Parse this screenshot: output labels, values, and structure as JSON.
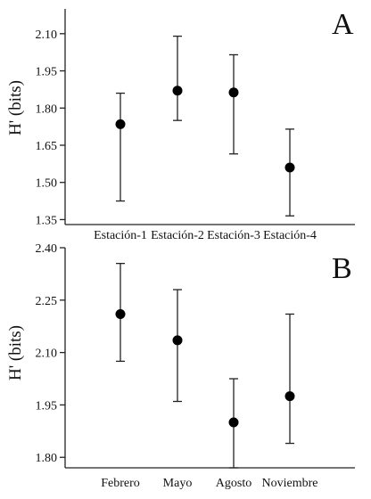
{
  "chart_data": [
    {
      "type": "scatter",
      "panel_label": "A",
      "ylabel": "H' (bits)",
      "ylim": [
        1.33,
        2.2
      ],
      "yticks": [
        1.35,
        1.5,
        1.65,
        1.8,
        1.95,
        2.1
      ],
      "ytick_labels": [
        "1.35",
        "1.50",
        "1.65",
        "1.80",
        "1.95",
        "2.10"
      ],
      "categories": [
        "Estación-1",
        "Estación-2",
        "Estación-3",
        "Estación-4"
      ],
      "values": [
        1.735,
        1.87,
        1.863,
        1.56
      ],
      "error_low": [
        1.425,
        1.75,
        1.615,
        1.365
      ],
      "error_high": [
        1.86,
        2.09,
        2.015,
        1.715
      ],
      "grid": false,
      "error_bars": true
    },
    {
      "type": "scatter",
      "panel_label": "B",
      "ylabel": "H' (bits)",
      "ylim": [
        1.77,
        2.4
      ],
      "yticks": [
        1.8,
        1.95,
        2.1,
        2.25,
        2.4
      ],
      "ytick_labels": [
        "1.80",
        "1.95",
        "2.10",
        "2.25",
        "2.40"
      ],
      "categories": [
        "Febrero",
        "Mayo",
        "Agosto",
        "Noviembre"
      ],
      "values": [
        2.21,
        2.135,
        1.9,
        1.975
      ],
      "error_low": [
        2.075,
        1.96,
        1.77,
        1.84
      ],
      "error_high": [
        2.355,
        2.28,
        2.025,
        2.21
      ],
      "grid": false,
      "error_bars": true
    }
  ]
}
